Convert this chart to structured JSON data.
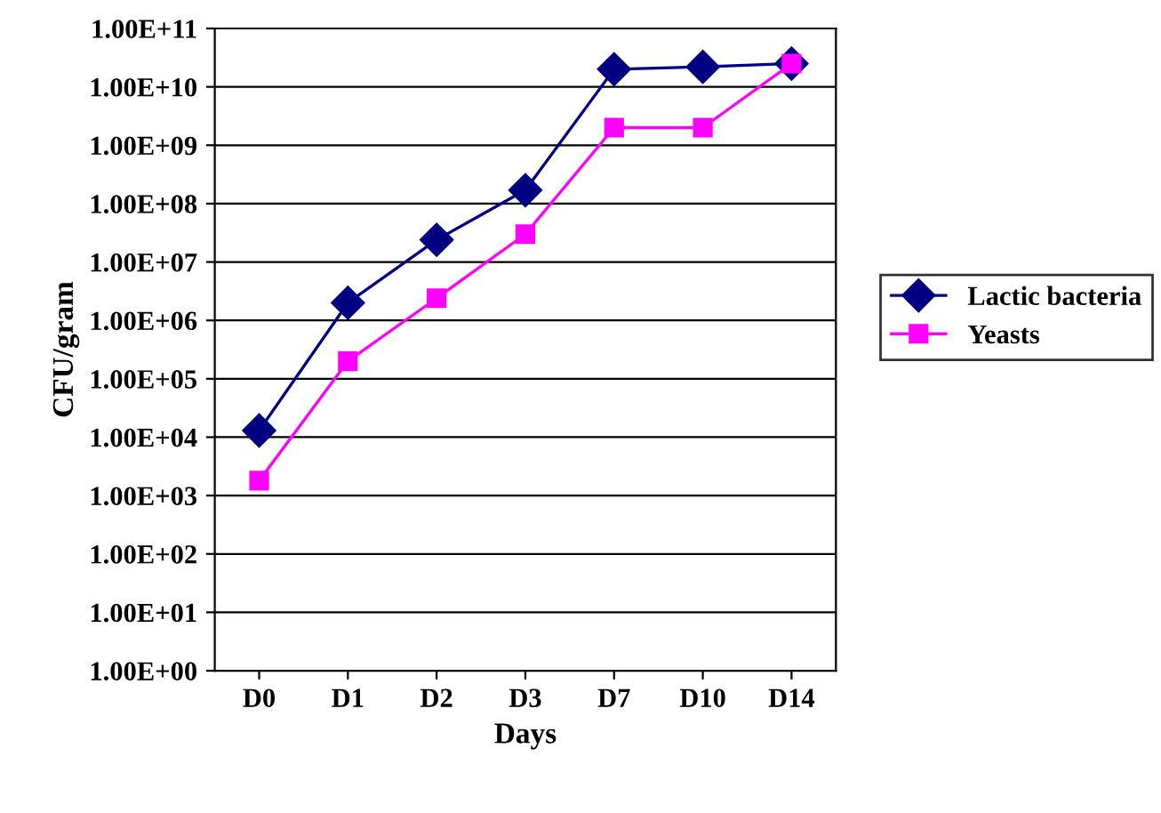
{
  "chart_data": {
    "type": "line",
    "xlabel": "Days",
    "ylabel": "CFU/gram",
    "categories": [
      "D0",
      "D1",
      "D2",
      "D3",
      "D7",
      "D10",
      "D14"
    ],
    "series": [
      {
        "name": "Lactic bacteria",
        "color": "#000080",
        "marker": "diamond",
        "values": [
          13000,
          2000000,
          24000000,
          170000000,
          20000000000,
          22000000000,
          25000000000
        ]
      },
      {
        "name": "Yeasts",
        "color": "#ff00ff",
        "marker": "square",
        "values": [
          1800,
          200000,
          2400000,
          30000000,
          2000000000,
          2000000000,
          25000000000
        ]
      }
    ],
    "log": "y",
    "ylim": [
      1,
      100000000000
    ],
    "yticks": [
      {
        "value": 1,
        "label": "1.00E+00"
      },
      {
        "value": 10,
        "label": "1.00E+01"
      },
      {
        "value": 100,
        "label": "1.00E+02"
      },
      {
        "value": 1000,
        "label": "1.00E+03"
      },
      {
        "value": 10000,
        "label": "1.00E+04"
      },
      {
        "value": 100000,
        "label": "1.00E+05"
      },
      {
        "value": 1000000,
        "label": "1.00E+06"
      },
      {
        "value": 10000000,
        "label": "1.00E+07"
      },
      {
        "value": 100000000,
        "label": "1.00E+08"
      },
      {
        "value": 1000000000,
        "label": "1.00E+09"
      },
      {
        "value": 10000000000,
        "label": "1.00E+10"
      },
      {
        "value": 100000000000,
        "label": "1.00E+11"
      }
    ],
    "grid": "y",
    "legend": "right",
    "line_style": "solid"
  }
}
